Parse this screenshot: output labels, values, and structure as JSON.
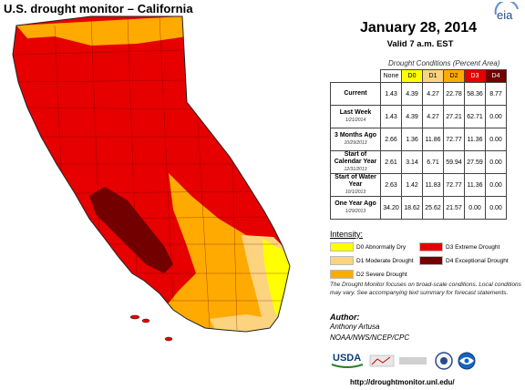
{
  "header": {
    "map_title": "U.S. drought monitor – California",
    "eia_logo_text": "eia"
  },
  "map": {
    "date": "January 28, 2014",
    "valid_time": "Valid 7 a.m. EST"
  },
  "table": {
    "caption": "Drought Conditions (Percent Area)",
    "columns": [
      "None",
      "D0",
      "D1",
      "D2",
      "D3",
      "D4"
    ],
    "rows": [
      {
        "label": "Current",
        "sublabel": "",
        "values": [
          "1.43",
          "4.39",
          "4.27",
          "22.78",
          "58.36",
          "8.77"
        ]
      },
      {
        "label": "Last Week",
        "sublabel": "1/21/2014",
        "values": [
          "1.43",
          "4.39",
          "4.27",
          "27.21",
          "62.71",
          "0.00"
        ]
      },
      {
        "label": "3 Months Ago",
        "sublabel": "10/29/2013",
        "values": [
          "2.66",
          "1.36",
          "11.86",
          "72.77",
          "11.36",
          "0.00"
        ]
      },
      {
        "label": "Start of Calendar Year",
        "sublabel": "12/31/2013",
        "values": [
          "2.61",
          "3.14",
          "6.71",
          "59.94",
          "27.59",
          "0.00"
        ]
      },
      {
        "label": "Start of Water Year",
        "sublabel": "10/1/2013",
        "values": [
          "2.63",
          "1.42",
          "11.83",
          "72.77",
          "11.36",
          "0.00"
        ]
      },
      {
        "label": "One Year Ago",
        "sublabel": "1/29/2013",
        "values": [
          "34.20",
          "18.62",
          "25.62",
          "21.57",
          "0.00",
          "0.00"
        ]
      }
    ]
  },
  "legend": {
    "title": "Intensity:",
    "items": [
      {
        "label": "D0 Abnormally Dry",
        "color": "#ffff00"
      },
      {
        "label": "D1 Moderate Drought",
        "color": "#fcd37f"
      },
      {
        "label": "D2 Severe Drought",
        "color": "#ffaa00"
      },
      {
        "label": "D3 Extreme Drought",
        "color": "#e60000"
      },
      {
        "label": "D4 Exceptional Drought",
        "color": "#730000"
      }
    ]
  },
  "note": "The Drought Monitor focuses on broad-scale conditions. Local conditions may vary. See accompanying text summary for forecast statements.",
  "author": {
    "heading": "Author:",
    "name": "Anthony Artusa",
    "org": "NOAA/NWS/NCEP/CPC"
  },
  "logos": {
    "usda": "USDA"
  },
  "url": "http://droughtmonitor.unl.edu/"
}
